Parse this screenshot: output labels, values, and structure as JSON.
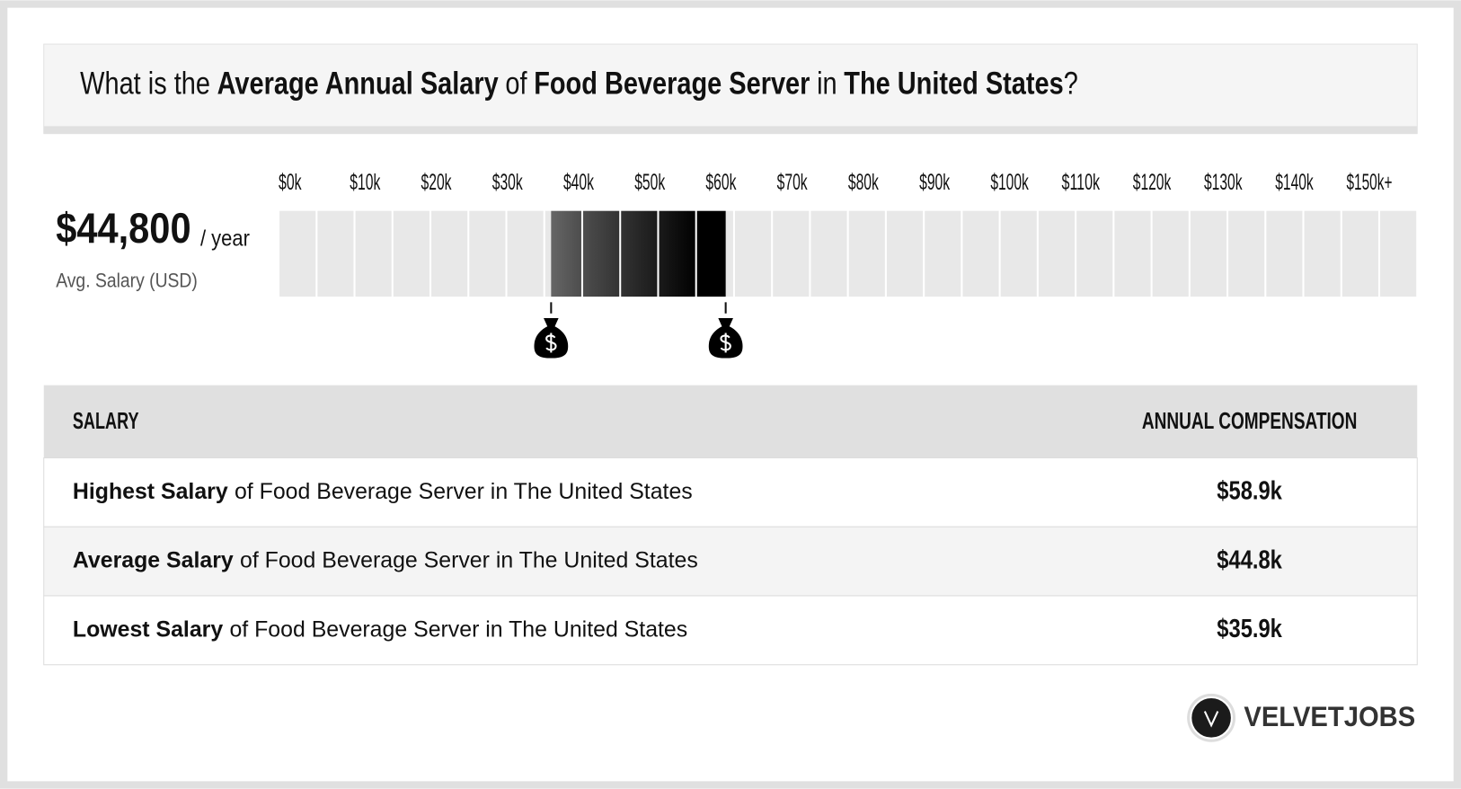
{
  "header": {
    "title": {
      "part1": "What is the",
      "job_term": "Average Annual Salary",
      "part2": "of",
      "job": "Food Beverage Server",
      "part3": "in",
      "location": "The United States",
      "end": "?"
    }
  },
  "summary": {
    "amount": "$44,800",
    "unit": "/ year",
    "caption": "Avg. Salary (USD)"
  },
  "scale": {
    "ticks": [
      {
        "value": 0,
        "label": "$0k"
      },
      {
        "value": 10,
        "label": "$10k"
      },
      {
        "value": 20,
        "label": "$20k"
      },
      {
        "value": 30,
        "label": "$30k"
      },
      {
        "value": 40,
        "label": "$40k"
      },
      {
        "value": 50,
        "label": "$50k"
      },
      {
        "value": 60,
        "label": "$60k"
      },
      {
        "value": 70,
        "label": "$70k"
      },
      {
        "value": 80,
        "label": "$80k"
      },
      {
        "value": 90,
        "label": "$90k"
      },
      {
        "value": 100,
        "label": "$100k"
      },
      {
        "value": 110,
        "label": "$110k"
      },
      {
        "value": 120,
        "label": "$120k"
      },
      {
        "value": 130,
        "label": "$130k"
      },
      {
        "value": 140,
        "label": "$140k"
      },
      {
        "value": 150,
        "label": "$150k+"
      }
    ]
  },
  "table": {
    "headers": [
      "SALARY",
      "ANNUAL COMPENSATION"
    ],
    "rows": [
      {
        "label_bold": "Highest Salary",
        "label_rest": "of Food Beverage Server in The United States",
        "value": 58.9,
        "value_label": "$58.9k"
      },
      {
        "label_bold": "Average Salary",
        "label_rest": "of Food Beverage Server in The United States",
        "value": 44.8,
        "value_label": "$44.8k"
      },
      {
        "label_bold": "Lowest Salary",
        "label_rest": "of Food Beverage Server in The United States",
        "value": 35.9,
        "value_label": "$35.9k"
      }
    ]
  },
  "brand": "VELVETJOBS"
}
